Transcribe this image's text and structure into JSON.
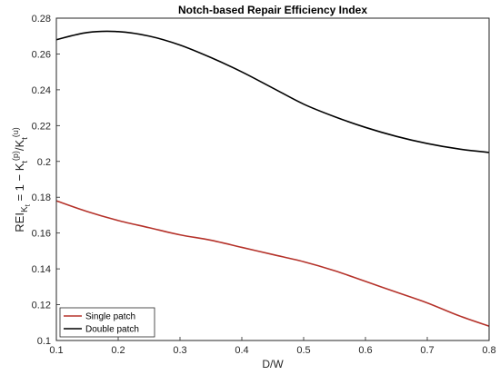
{
  "chart_data": {
    "type": "line",
    "title": "Notch-based Repair Efficiency Index",
    "xlabel": "D/W",
    "ylabel": {
      "main": "REI",
      "sub_K": "K",
      "sub_t": "t",
      "eq": " = 1 − K",
      "sup1": "(p)",
      "slash": "/K",
      "sup2": "(u)"
    },
    "xlim": [
      0.1,
      0.8
    ],
    "ylim": [
      0.1,
      0.28
    ],
    "xticks": [
      "0.1",
      "0.2",
      "0.3",
      "0.4",
      "0.5",
      "0.6",
      "0.7",
      "0.8"
    ],
    "yticks": [
      "0.1",
      "0.12",
      "0.14",
      "0.16",
      "0.18",
      "0.2",
      "0.22",
      "0.24",
      "0.26",
      "0.28"
    ],
    "grid": false,
    "legend_position": "bottom-left",
    "series": [
      {
        "name": "Single patch",
        "color": "#b5322a",
        "x": [
          0.1,
          0.15,
          0.2,
          0.25,
          0.3,
          0.35,
          0.4,
          0.45,
          0.5,
          0.55,
          0.6,
          0.65,
          0.7,
          0.75,
          0.8
        ],
        "y": [
          0.178,
          0.172,
          0.167,
          0.163,
          0.159,
          0.156,
          0.152,
          0.148,
          0.144,
          0.139,
          0.133,
          0.127,
          0.121,
          0.114,
          0.108
        ]
      },
      {
        "name": "Double patch",
        "color": "#000000",
        "x": [
          0.1,
          0.15,
          0.2,
          0.25,
          0.3,
          0.35,
          0.4,
          0.45,
          0.5,
          0.55,
          0.6,
          0.65,
          0.7,
          0.75,
          0.8
        ],
        "y": [
          0.268,
          0.272,
          0.2725,
          0.27,
          0.265,
          0.258,
          0.25,
          0.241,
          0.232,
          0.225,
          0.219,
          0.214,
          0.21,
          0.207,
          0.205
        ]
      }
    ]
  }
}
